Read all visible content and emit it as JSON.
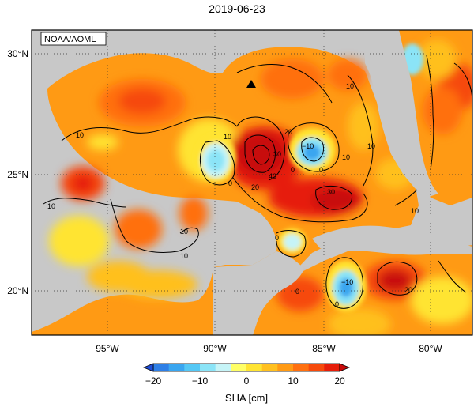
{
  "title": "2019-06-23",
  "credit": "NOAA/AOML",
  "lat_labels": [
    "30°N",
    "25°N",
    "20°N"
  ],
  "lon_labels": [
    "95°W",
    "90°W",
    "85°W",
    "80°W"
  ],
  "colorbar": {
    "label": "SHA [cm]",
    "ticks": [
      "−20",
      "−10",
      "0",
      "10",
      "20"
    ],
    "colors": [
      "#1f4fd8",
      "#2e7fe6",
      "#3aa6f0",
      "#55c8f5",
      "#8be4f7",
      "#c6f4f7",
      "#ffff66",
      "#ffe433",
      "#ffc01f",
      "#ff9a14",
      "#ff7010",
      "#f64a0c",
      "#e61e0a",
      "#c80a0a"
    ]
  },
  "contour_labels": [
    "10",
    "10",
    "10",
    "10",
    "10",
    "10",
    "10",
    "20",
    "30",
    "40",
    "0",
    "−10",
    "0",
    "0",
    "−10",
    "10",
    "30",
    "20",
    "0",
    "0",
    "20",
    "10",
    "0"
  ],
  "colors": {
    "land": "#c8c8c8",
    "gulf_base": "#ff9a14",
    "frame": "#000000"
  }
}
